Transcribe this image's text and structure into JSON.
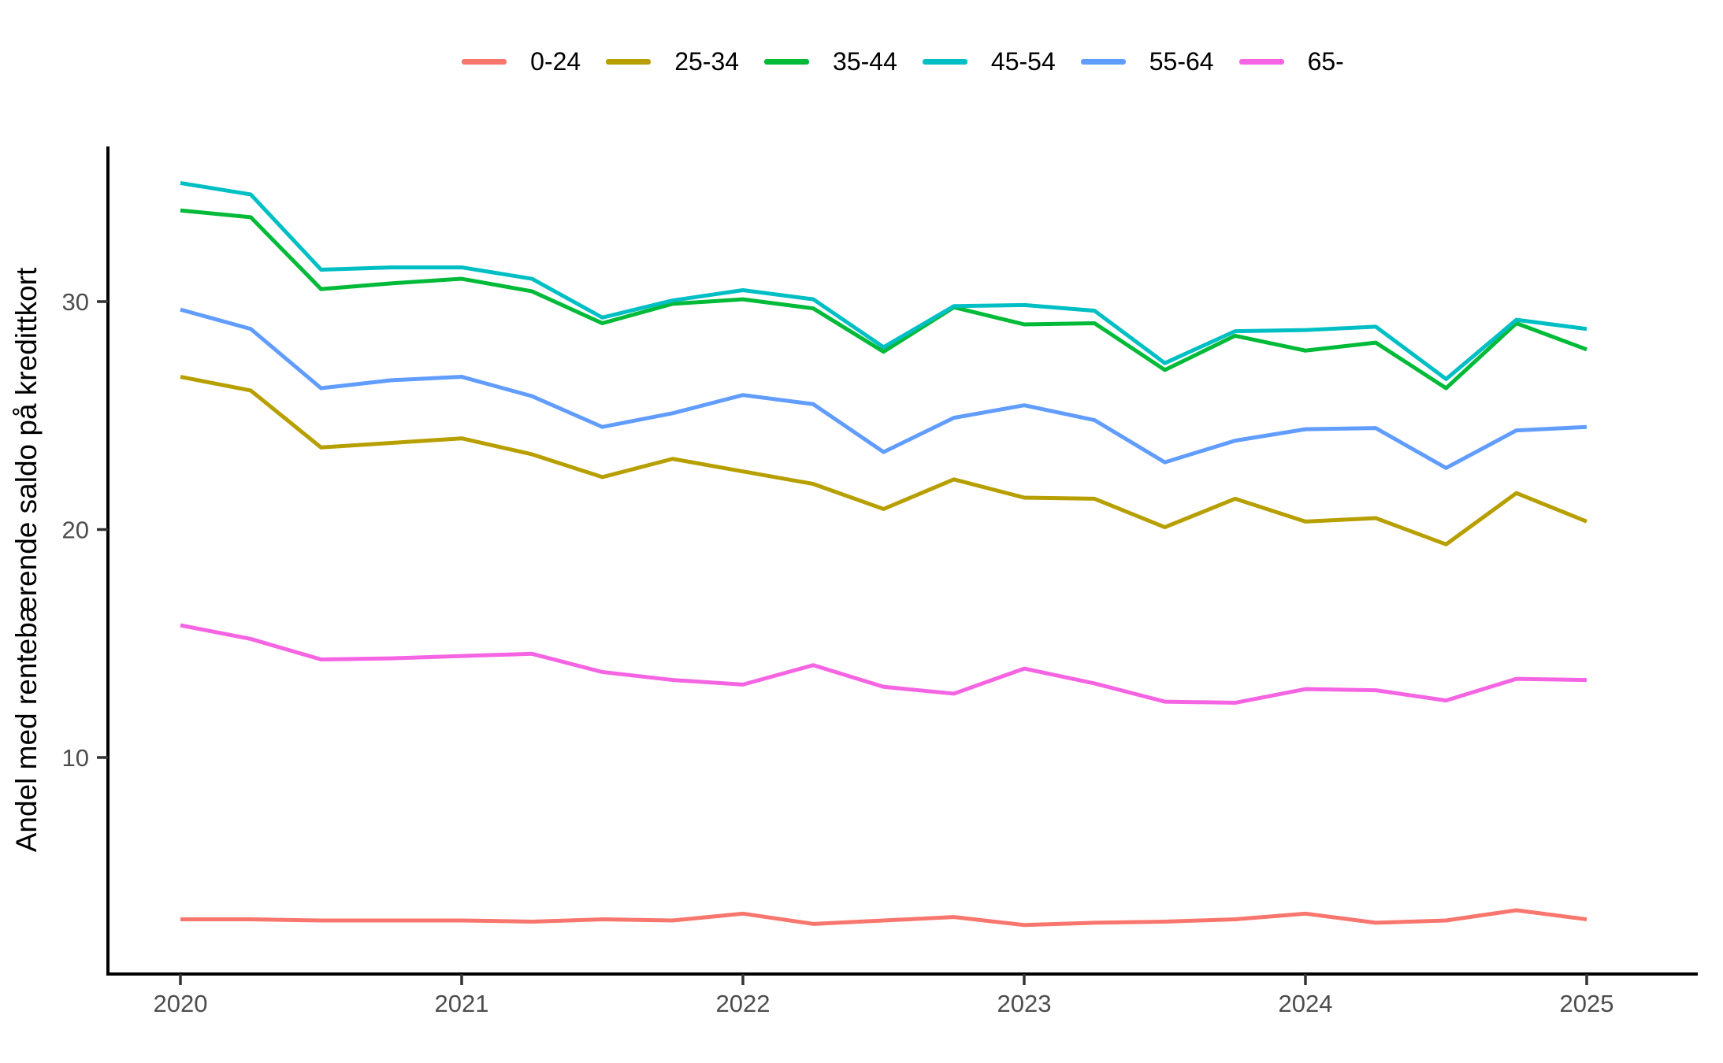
{
  "chart_data": {
    "type": "line",
    "title": "",
    "xlabel": "",
    "ylabel": "Andel med rentebærende saldo på kredittkort",
    "legend_position": "top",
    "grid": false,
    "x_ticks": [
      2020,
      2021,
      2022,
      2023,
      2024,
      2025
    ],
    "y_ticks": [
      10,
      20,
      30
    ],
    "ylim": [
      0.8,
      36.8
    ],
    "xlim": [
      2019.74,
      2025.4
    ],
    "x": [
      2020.0,
      2020.25,
      2020.5,
      2020.75,
      2021.0,
      2021.25,
      2021.5,
      2021.75,
      2022.0,
      2022.25,
      2022.5,
      2022.75,
      2023.0,
      2023.25,
      2023.5,
      2023.75,
      2024.0,
      2024.25,
      2024.5,
      2024.75,
      2025.0
    ],
    "series": [
      {
        "name": "0-24",
        "color": "#F8766D",
        "values": [
          2.9,
          2.9,
          2.85,
          2.85,
          2.85,
          2.8,
          2.9,
          2.85,
          3.15,
          2.7,
          2.85,
          3.0,
          2.65,
          2.75,
          2.8,
          2.9,
          3.15,
          2.75,
          2.85,
          3.3,
          2.9
        ]
      },
      {
        "name": "25-34",
        "color": "#B79F00",
        "values": [
          26.7,
          26.1,
          23.6,
          23.8,
          24.0,
          23.3,
          22.3,
          23.1,
          22.55,
          22.0,
          20.9,
          22.2,
          21.4,
          21.35,
          20.1,
          21.35,
          20.35,
          20.5,
          19.35,
          21.6,
          20.35
        ]
      },
      {
        "name": "35-44",
        "color": "#00BA38",
        "values": [
          34.0,
          33.7,
          30.55,
          30.8,
          31.0,
          30.45,
          29.05,
          29.9,
          30.1,
          29.7,
          27.8,
          29.75,
          29.0,
          29.05,
          27.0,
          28.5,
          27.85,
          28.2,
          26.2,
          29.05,
          27.9
        ]
      },
      {
        "name": "45-54",
        "color": "#00BFC4",
        "values": [
          35.2,
          34.7,
          31.4,
          31.5,
          31.5,
          31.0,
          29.3,
          30.05,
          30.5,
          30.1,
          28.0,
          29.8,
          29.85,
          29.6,
          27.3,
          28.7,
          28.75,
          28.9,
          26.6,
          29.2,
          28.8
        ]
      },
      {
        "name": "55-64",
        "color": "#619CFF",
        "values": [
          29.65,
          28.8,
          26.2,
          26.55,
          26.7,
          25.85,
          24.5,
          25.1,
          25.9,
          25.5,
          23.4,
          24.9,
          25.45,
          24.8,
          22.95,
          23.9,
          24.4,
          24.45,
          22.7,
          24.35,
          24.5
        ]
      },
      {
        "name": "65-",
        "color": "#F564E3",
        "values": [
          15.8,
          15.2,
          14.3,
          14.35,
          14.45,
          14.55,
          13.75,
          13.4,
          13.2,
          14.05,
          13.1,
          12.8,
          13.9,
          13.25,
          12.45,
          12.4,
          13.0,
          12.95,
          12.5,
          13.45,
          13.4
        ]
      }
    ]
  }
}
